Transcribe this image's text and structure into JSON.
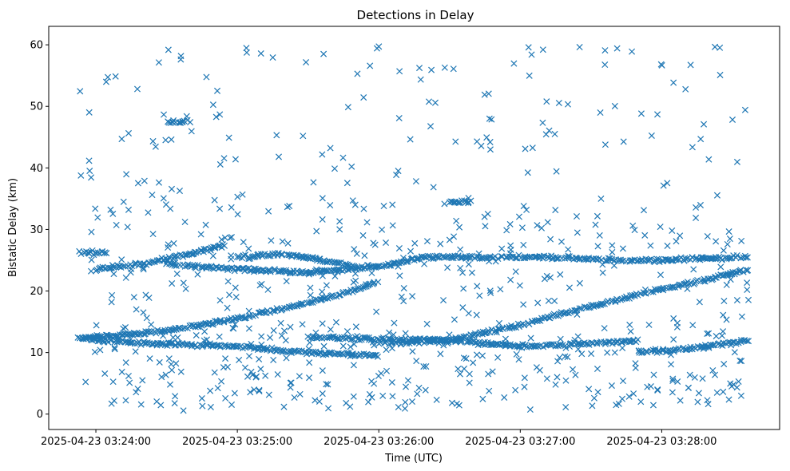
{
  "chart_data": {
    "type": "scatter",
    "title": "Detections in Delay",
    "xlabel": "Time (UTC)",
    "ylabel": "Bistatic Delay (km)",
    "marker": "x",
    "color": "#1f77b4",
    "grid": false,
    "legend": "none",
    "x_axis": {
      "type": "time",
      "min": "2025-04-23 03:23:40",
      "max": "2025-04-23 03:28:50",
      "ticks": [
        "2025-04-23 03:24:00",
        "2025-04-23 03:25:00",
        "2025-04-23 03:26:00",
        "2025-04-23 03:27:00",
        "2025-04-23 03:28:00"
      ]
    },
    "y_axis": {
      "min": -2.5,
      "max": 63,
      "ticks": [
        0,
        10,
        20,
        30,
        40,
        50,
        60
      ]
    },
    "data_range": {
      "x": [
        "2025-04-23 03:23:53",
        "2025-04-23 03:28:37"
      ],
      "y": [
        0.5,
        60
      ]
    },
    "tracks": [
      {
        "points": [
          [
            "03:23:53",
            12.3
          ],
          [
            "03:24:30",
            13.5
          ],
          [
            "03:25:00",
            15.5
          ],
          [
            "03:25:40",
            19.0
          ],
          [
            "03:26:00",
            21.5
          ]
        ]
      },
      {
        "points": [
          [
            "03:26:00",
            11.5
          ],
          [
            "03:26:30",
            12.0
          ],
          [
            "03:27:00",
            14.5
          ],
          [
            "03:27:40",
            18.5
          ],
          [
            "03:28:20",
            22.0
          ],
          [
            "03:28:37",
            23.5
          ]
        ]
      },
      {
        "points": [
          [
            "03:23:53",
            12.3
          ],
          [
            "03:24:20",
            11.5
          ],
          [
            "03:25:00",
            11.0
          ],
          [
            "03:25:30",
            10.0
          ],
          [
            "03:26:00",
            9.5
          ]
        ]
      },
      {
        "points": [
          [
            "03:25:30",
            12.5
          ],
          [
            "03:26:00",
            12.2
          ],
          [
            "03:26:30",
            12.0
          ],
          [
            "03:27:00",
            11.0
          ],
          [
            "03:27:30",
            11.5
          ],
          [
            "03:27:50",
            12.0
          ]
        ]
      },
      {
        "points": [
          [
            "03:23:53",
            26.2
          ],
          [
            "03:24:05",
            26.2
          ]
        ]
      },
      {
        "points": [
          [
            "03:24:00",
            23.5
          ],
          [
            "03:24:20",
            24.5
          ],
          [
            "03:24:40",
            26.0
          ],
          [
            "03:24:55",
            27.5
          ]
        ]
      },
      {
        "points": [
          [
            "03:24:30",
            24.5
          ],
          [
            "03:25:00",
            23.5
          ],
          [
            "03:25:30",
            23.0
          ],
          [
            "03:26:00",
            24.0
          ],
          [
            "03:26:20",
            25.5
          ],
          [
            "03:26:45",
            25.5
          ],
          [
            "03:27:10",
            25.5
          ],
          [
            "03:27:40",
            25.0
          ],
          [
            "03:28:00",
            25.0
          ],
          [
            "03:28:37",
            25.5
          ]
        ]
      },
      {
        "points": [
          [
            "03:25:00",
            25.5
          ],
          [
            "03:25:20",
            26.0
          ],
          [
            "03:25:50",
            24.0
          ]
        ]
      },
      {
        "points": [
          [
            "03:26:30",
            34.5
          ],
          [
            "03:26:40",
            34.5
          ]
        ]
      },
      {
        "points": [
          [
            "03:24:30",
            47.5
          ],
          [
            "03:24:40",
            47.5
          ]
        ]
      },
      {
        "points": [
          [
            "03:27:50",
            10.0
          ],
          [
            "03:28:10",
            10.5
          ],
          [
            "03:28:37",
            12.0
          ]
        ]
      }
    ],
    "approx_point_count": 1500
  }
}
